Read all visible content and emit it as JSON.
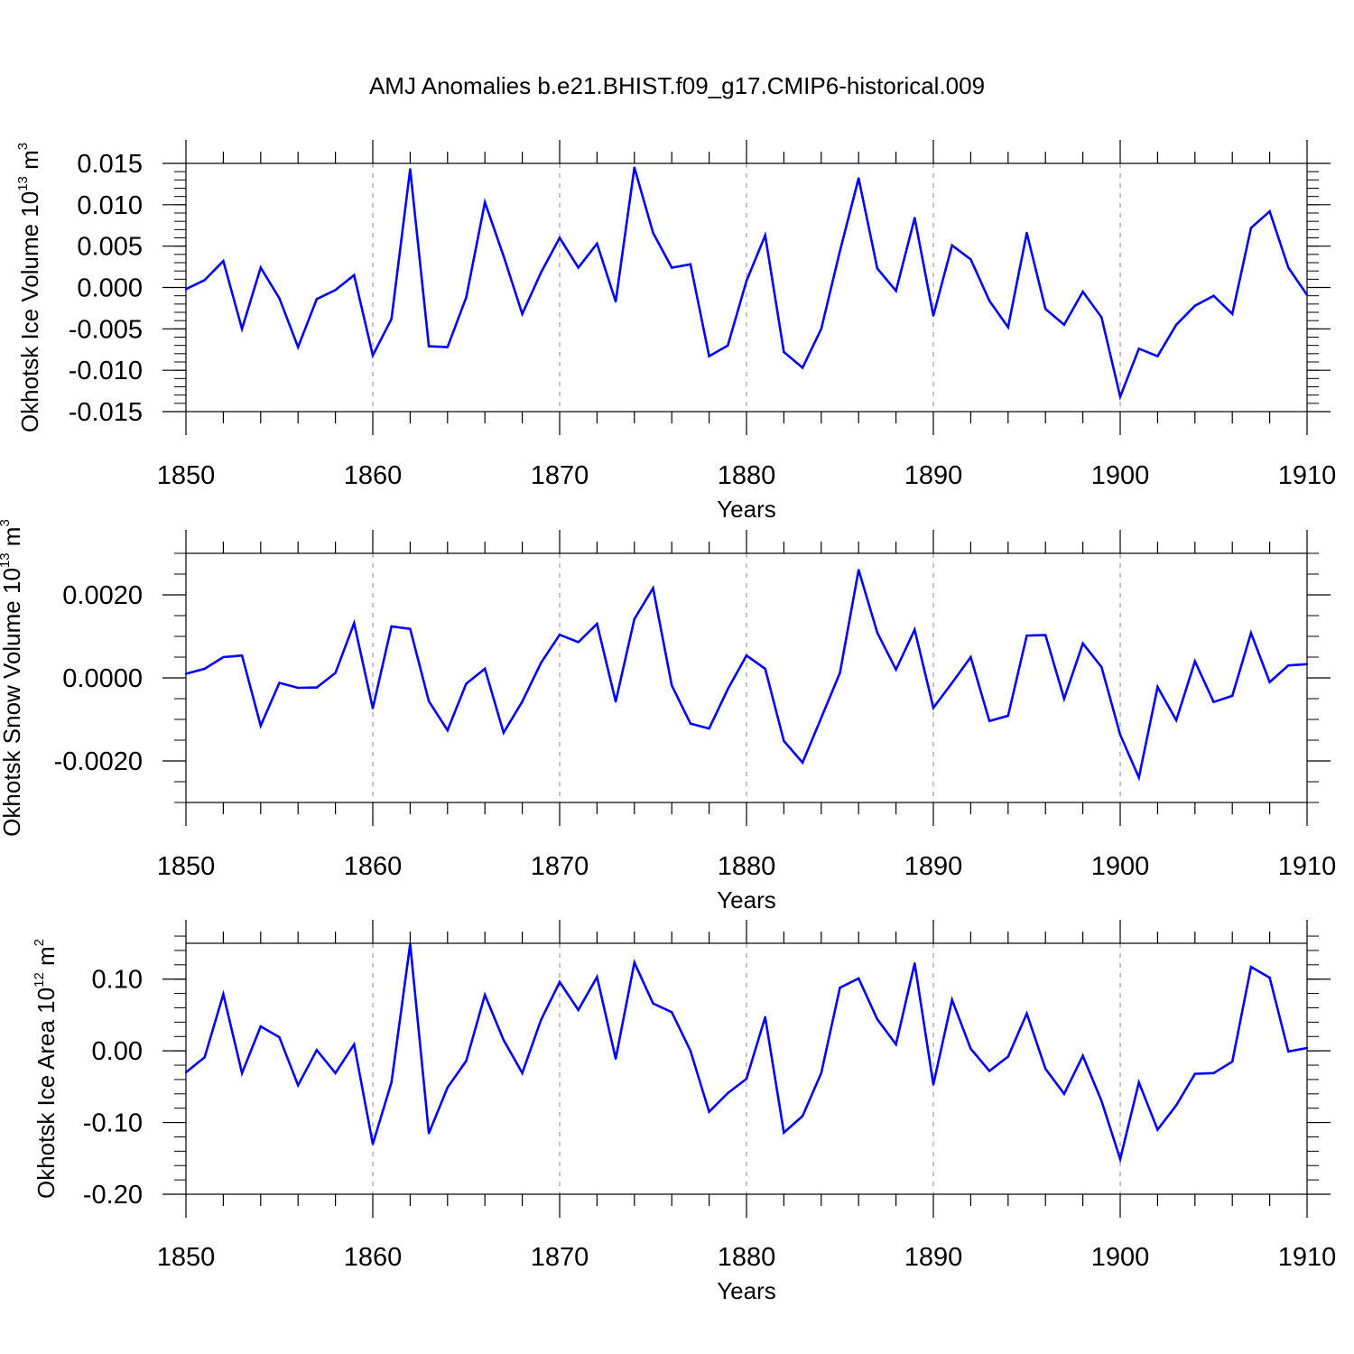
{
  "title": "AMJ Anomalies b.e21.BHIST.f09_g17.CMIP6-historical.009",
  "line_color": "#0000ff",
  "frame_color": "#000000",
  "grid_color": "#888888",
  "chart_data": [
    {
      "type": "line",
      "name": "ice-volume",
      "ylabel_parts": [
        "Okhotsk Ice Volume 10",
        "13",
        " m",
        "3"
      ],
      "xlabel": "Years",
      "xlim": [
        1850,
        1910
      ],
      "ylim": [
        -0.015,
        0.015
      ],
      "xticks": [
        1850,
        1860,
        1870,
        1880,
        1890,
        1900,
        1910
      ],
      "xtick_labels": [
        "1850",
        "1860",
        "1870",
        "1880",
        "1890",
        "1900",
        "1910"
      ],
      "yticks": [
        -0.015,
        -0.01,
        -0.005,
        0.0,
        0.005,
        0.01,
        0.015
      ],
      "ytick_labels": [
        "-0.015",
        "-0.010",
        "-0.005",
        "0.000",
        "0.005",
        "0.010",
        "0.015"
      ],
      "yminor_step": 0.001,
      "x": [
        1850,
        1851,
        1852,
        1853,
        1854,
        1855,
        1856,
        1857,
        1858,
        1859,
        1860,
        1861,
        1862,
        1863,
        1864,
        1865,
        1866,
        1867,
        1868,
        1869,
        1870,
        1871,
        1872,
        1873,
        1874,
        1875,
        1876,
        1877,
        1878,
        1879,
        1880,
        1881,
        1882,
        1883,
        1884,
        1885,
        1886,
        1887,
        1888,
        1889,
        1890,
        1891,
        1892,
        1893,
        1894,
        1895,
        1896,
        1897,
        1898,
        1899,
        1900,
        1901,
        1902,
        1903,
        1904,
        1905,
        1906,
        1907,
        1908,
        1909,
        1910
      ],
      "y": [
        -0.0002,
        0.0009,
        0.0032,
        -0.005,
        0.0024,
        -0.0013,
        -0.0072,
        -0.0014,
        -0.0003,
        0.0015,
        -0.0082,
        -0.0038,
        0.0143,
        -0.0071,
        -0.0072,
        -0.0012,
        0.0103,
        0.0038,
        -0.0032,
        0.0018,
        0.006,
        0.0024,
        0.0053,
        -0.0017,
        0.0145,
        0.0066,
        0.0024,
        0.0028,
        -0.0083,
        -0.007,
        0.0008,
        0.0063,
        -0.0078,
        -0.0097,
        -0.005,
        0.0044,
        0.0132,
        0.0023,
        -0.0004,
        0.0084,
        -0.0034,
        0.0051,
        0.0034,
        -0.0016,
        -0.0048,
        0.0066,
        -0.0026,
        -0.0045,
        -0.0005,
        -0.0036,
        -0.0132,
        -0.0074,
        -0.0083,
        -0.0045,
        -0.0022,
        -0.001,
        -0.0032,
        0.0072,
        0.0092,
        0.0024,
        -0.0009
      ]
    },
    {
      "type": "line",
      "name": "snow-volume",
      "ylabel_parts": [
        "Okhotsk Snow Volume 10",
        "13",
        " m",
        "3"
      ],
      "xlabel": "Years",
      "xlim": [
        1850,
        1910
      ],
      "ylim": [
        -0.003,
        0.003
      ],
      "xticks": [
        1850,
        1860,
        1870,
        1880,
        1890,
        1900,
        1910
      ],
      "xtick_labels": [
        "1850",
        "1860",
        "1870",
        "1880",
        "1890",
        "1900",
        "1910"
      ],
      "yticks": [
        -0.002,
        0.0,
        0.002
      ],
      "ytick_labels": [
        "-0.0020",
        "0.0000",
        "0.0020"
      ],
      "yminor_step": 0.0005,
      "x": [
        1850,
        1851,
        1852,
        1853,
        1854,
        1855,
        1856,
        1857,
        1858,
        1859,
        1860,
        1861,
        1862,
        1863,
        1864,
        1865,
        1866,
        1867,
        1868,
        1869,
        1870,
        1871,
        1872,
        1873,
        1874,
        1875,
        1876,
        1877,
        1878,
        1879,
        1880,
        1881,
        1882,
        1883,
        1884,
        1885,
        1886,
        1887,
        1888,
        1889,
        1890,
        1891,
        1892,
        1893,
        1894,
        1895,
        1896,
        1897,
        1898,
        1899,
        1900,
        1901,
        1902,
        1903,
        1904,
        1905,
        1906,
        1907,
        1908,
        1909,
        1910
      ],
      "y": [
        0.0001,
        0.00022,
        0.0005,
        0.00054,
        -0.00115,
        -0.00012,
        -0.00024,
        -0.00023,
        0.00012,
        0.00132,
        -0.00073,
        0.00124,
        0.00118,
        -0.00056,
        -0.00126,
        -0.00014,
        0.00022,
        -0.00132,
        -0.00057,
        0.00036,
        0.00104,
        0.00086,
        0.0013,
        -0.00057,
        0.00142,
        0.00216,
        -0.00018,
        -0.0011,
        -0.00122,
        -0.00027,
        0.00054,
        0.00022,
        -0.00152,
        -0.00204,
        -0.00096,
        0.00012,
        0.0026,
        0.00109,
        0.0002,
        0.00116,
        -0.00072,
        -0.00012,
        0.0005,
        -0.00104,
        -0.00091,
        0.00102,
        0.00103,
        -0.0005,
        0.00083,
        0.00026,
        -0.00137,
        -0.0024,
        -0.00022,
        -0.00102,
        0.0004,
        -0.00058,
        -0.00043,
        0.00108,
        -0.0001,
        0.0003,
        0.00033
      ]
    },
    {
      "type": "line",
      "name": "ice-area",
      "ylabel_parts": [
        "Okhotsk Ice Area 10",
        "12",
        " m",
        "2"
      ],
      "xlabel": "Years",
      "xlim": [
        1850,
        1910
      ],
      "ylim": [
        -0.2,
        0.15
      ],
      "xticks": [
        1850,
        1860,
        1870,
        1880,
        1890,
        1900,
        1910
      ],
      "xtick_labels": [
        "1850",
        "1860",
        "1870",
        "1880",
        "1890",
        "1900",
        "1910"
      ],
      "yticks": [
        -0.2,
        -0.1,
        0.0,
        0.1
      ],
      "ytick_labels": [
        "-0.20",
        "-0.10",
        "0.00",
        "0.10"
      ],
      "yminor_step": 0.02,
      "x": [
        1850,
        1851,
        1852,
        1853,
        1854,
        1855,
        1856,
        1857,
        1858,
        1859,
        1860,
        1861,
        1862,
        1863,
        1864,
        1865,
        1866,
        1867,
        1868,
        1869,
        1870,
        1871,
        1872,
        1873,
        1874,
        1875,
        1876,
        1877,
        1878,
        1879,
        1880,
        1881,
        1882,
        1883,
        1884,
        1885,
        1886,
        1887,
        1888,
        1889,
        1890,
        1891,
        1892,
        1893,
        1894,
        1895,
        1896,
        1897,
        1898,
        1899,
        1900,
        1901,
        1902,
        1903,
        1904,
        1905,
        1906,
        1907,
        1908,
        1909,
        1910
      ],
      "y": [
        -0.03,
        -0.009,
        0.079,
        -0.031,
        0.034,
        0.019,
        -0.048,
        0.001,
        -0.031,
        0.009,
        -0.13,
        -0.044,
        0.149,
        -0.115,
        -0.051,
        -0.014,
        0.078,
        0.015,
        -0.031,
        0.043,
        0.096,
        0.057,
        0.103,
        -0.011,
        0.123,
        0.066,
        0.054,
        0.0,
        -0.085,
        -0.059,
        -0.039,
        0.047,
        -0.114,
        -0.091,
        -0.031,
        0.088,
        0.101,
        0.044,
        0.009,
        0.122,
        -0.047,
        0.071,
        0.003,
        -0.028,
        -0.008,
        0.052,
        -0.025,
        -0.06,
        -0.007,
        -0.07,
        -0.151,
        -0.044,
        -0.11,
        -0.076,
        -0.032,
        -0.031,
        -0.015,
        0.117,
        0.102,
        -0.001,
        0.004
      ]
    }
  ]
}
